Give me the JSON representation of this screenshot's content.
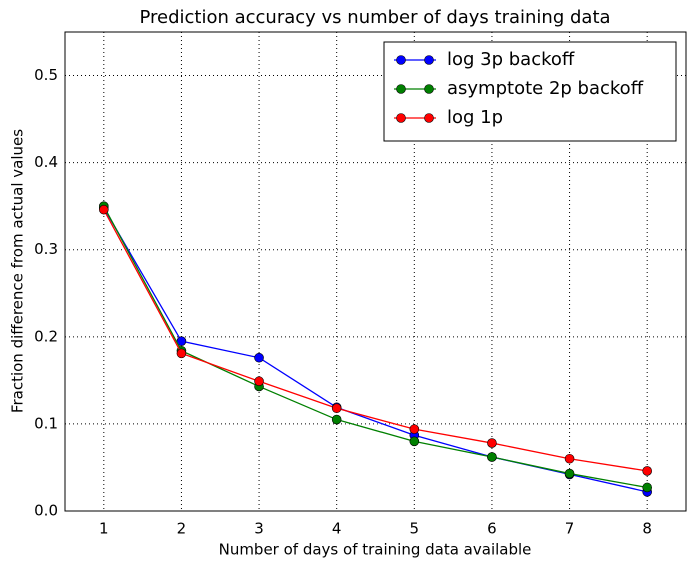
{
  "chart_data": {
    "type": "line",
    "title": "Prediction accuracy vs number of days training data",
    "x_label": "Number of days of training data available",
    "y_label": "Fraction difference from actual values",
    "x": [
      1,
      2,
      3,
      4,
      5,
      6,
      7,
      8
    ],
    "series": [
      {
        "name": "log 3p backoff",
        "color": "#0000ff",
        "values": [
          0.348,
          0.195,
          0.176,
          0.119,
          0.087,
          0.062,
          0.042,
          0.022
        ]
      },
      {
        "name": "asymptote 2p backoff",
        "color": "#008000",
        "values": [
          0.35,
          0.184,
          0.143,
          0.105,
          0.08,
          0.062,
          0.043,
          0.027
        ]
      },
      {
        "name": "log 1p",
        "color": "#ff0000",
        "values": [
          0.346,
          0.181,
          0.149,
          0.118,
          0.094,
          0.078,
          0.06,
          0.046
        ]
      }
    ],
    "xlim": [
      0.5,
      8.5
    ],
    "xticks": [
      1,
      2,
      3,
      4,
      5,
      6,
      7,
      8
    ],
    "ylim": [
      0,
      0.55
    ],
    "yticks": [
      {
        "value": 0,
        "label": "0.0"
      },
      0.1,
      0.2,
      0.3,
      0.4,
      0.5
    ],
    "grid": true,
    "legend": "upper right"
  }
}
